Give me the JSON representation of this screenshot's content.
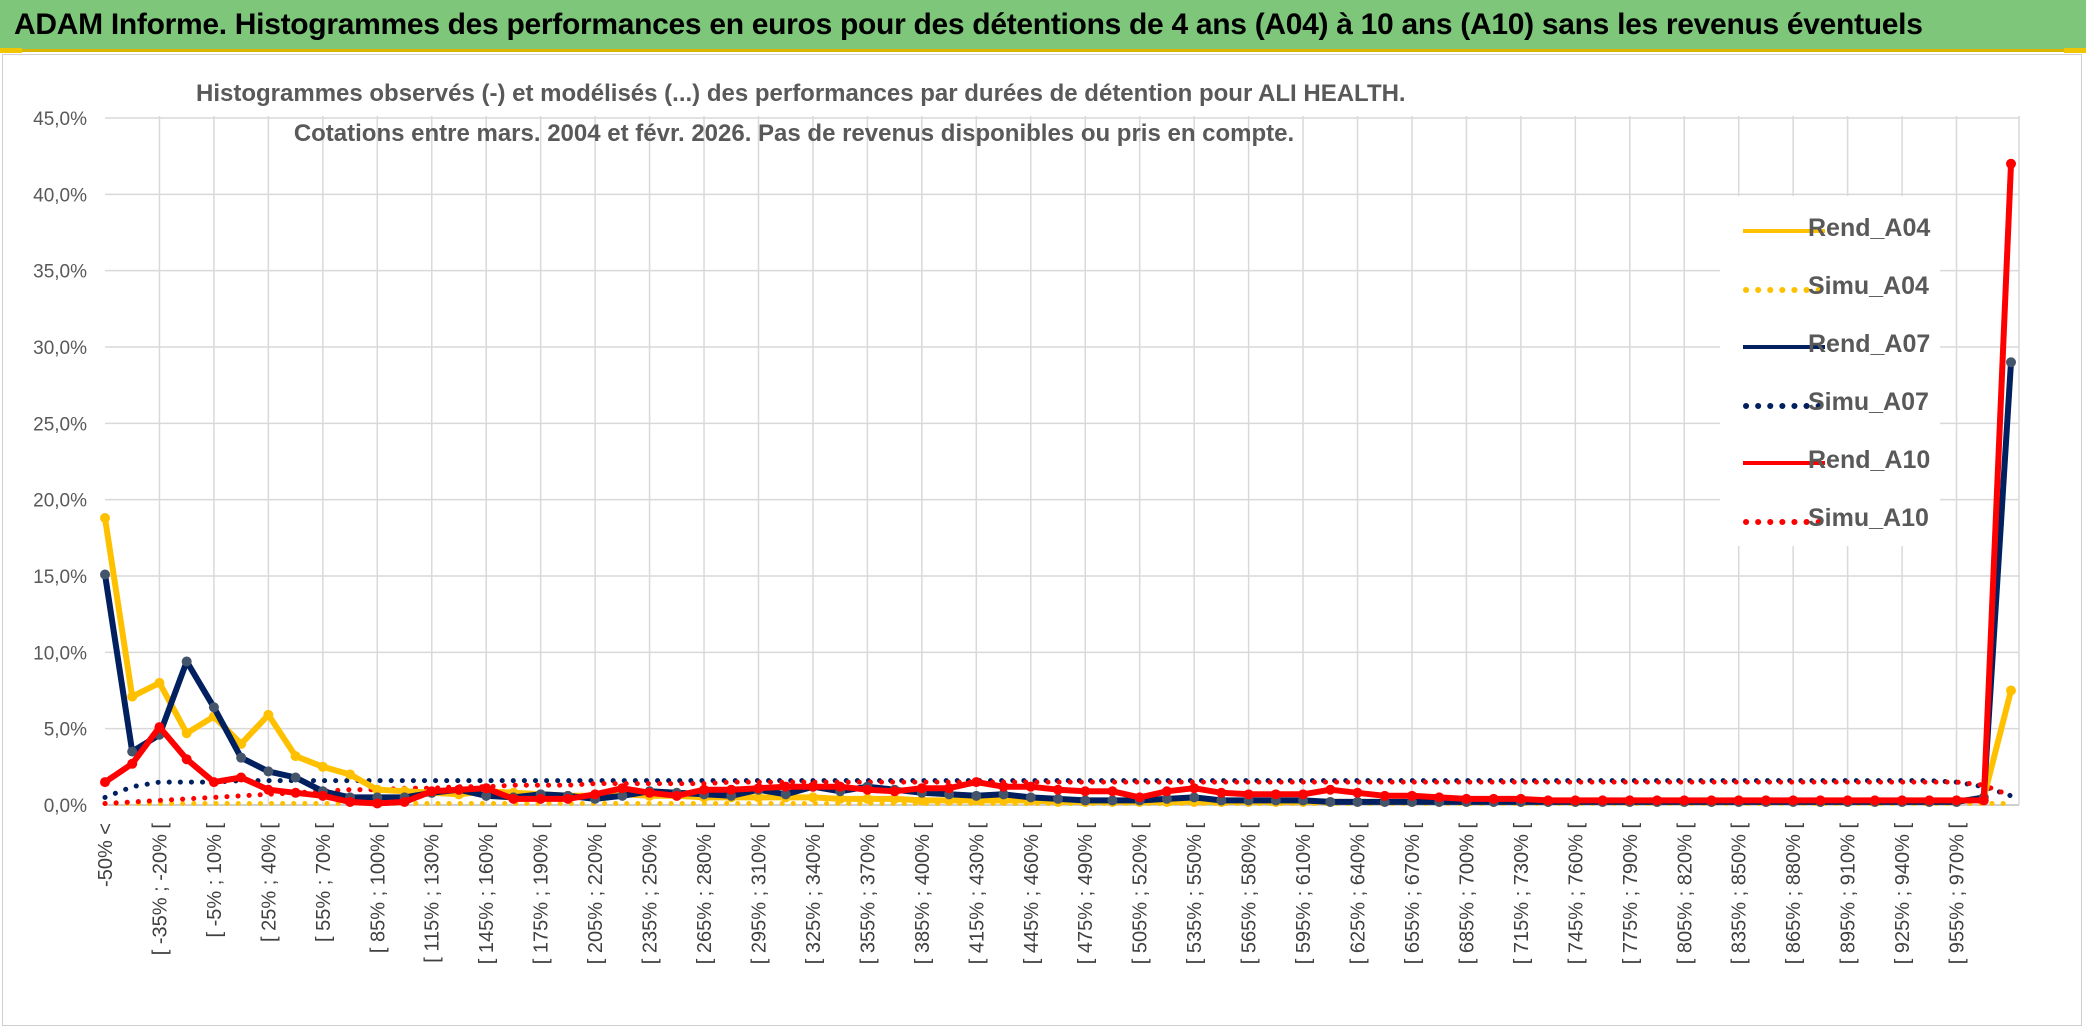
{
  "banner": {
    "title": "ADAM Informe. Histogrammes des performances en euros pour des détentions de 4 ans (A04) à 10 ans (A10) sans les revenus éventuels"
  },
  "chart_data": {
    "type": "line",
    "title": "Histogrammes observés (-) et modélisés (...) des performances par durées de détention pour ALI HEALTH.",
    "subtitle": "Cotations entre mars. 2004 et févr. 2026. Pas de revenus disponibles ou pris en compte.",
    "xlabel": "",
    "ylabel": "",
    "ylim": [
      0,
      45
    ],
    "y_ticks": [
      "0,0%",
      "5,0%",
      "10,0%",
      "15,0%",
      "20,0%",
      "25,0%",
      "30,0%",
      "35,0%",
      "40,0%",
      "45,0%"
    ],
    "x_tick_labels": [
      "-50% <",
      "[ -35% ; -20% [",
      "[ -5% ; 10% [",
      "[ 25% ; 40% [",
      "[ 55% ; 70% [",
      "[ 85% ; 100% [",
      "[ 115% ; 130% [",
      "[ 145% ; 160% [",
      "[ 175% ; 190% [",
      "[ 205% ; 220% [",
      "[ 235% ; 250% [",
      "[ 265% ; 280% [",
      "[ 295% ; 310% [",
      "[ 325% ; 340% [",
      "[ 355% ; 370% [",
      "[ 385% ; 400% [",
      "[ 415% ; 430% [",
      "[ 445% ; 460% [",
      "[ 475% ; 490% [",
      "[ 505% ; 520% [",
      "[ 535% ; 550% [",
      "[ 565% ; 580% [",
      "[ 595% ; 610% [",
      "[ 625% ; 640% [",
      "[ 655% ; 670% [",
      "[ 685% ; 700% [",
      "[ 715% ; 730% [",
      "[ 745% ; 760% [",
      "[ 775% ; 790% [",
      "[ 805% ; 820% [",
      "[ 835% ; 850% [",
      "[ 865% ; 880% [",
      "[ 895% ; 910% [",
      "[ 925% ; 940% [",
      "[ 955% ; 970% ["
    ],
    "n_categories": 71,
    "legend_position": "right",
    "grid": true,
    "series": [
      {
        "name": "Rend_A04",
        "style": "solid",
        "color": "#ffc000",
        "values": [
          18.8,
          7.1,
          8.0,
          4.7,
          5.8,
          4.0,
          5.9,
          3.2,
          2.5,
          2.0,
          1.0,
          0.9,
          0.8,
          0.7,
          0.9,
          0.8,
          0.7,
          0.6,
          0.6,
          0.7,
          0.6,
          0.6,
          0.5,
          0.5,
          0.5,
          0.5,
          0.5,
          0.4,
          0.4,
          0.4,
          0.3,
          0.3,
          0.3,
          0.3,
          0.3,
          0.2,
          0.2,
          0.2,
          0.2,
          0.2,
          0.2,
          0.2,
          0.2,
          0.2,
          0.2,
          0.2,
          0.2,
          0.2,
          0.2,
          0.2,
          0.2,
          0.2,
          0.2,
          0.2,
          0.2,
          0.2,
          0.2,
          0.2,
          0.2,
          0.2,
          0.2,
          0.2,
          0.2,
          0.2,
          0.2,
          0.2,
          0.2,
          0.2,
          0.2,
          0.5,
          7.5
        ]
      },
      {
        "name": "Simu_A04",
        "style": "dotted",
        "color": "#ffc000",
        "values": [
          0.1,
          0.1,
          0.1,
          0.1,
          0.1,
          0.1,
          0.1,
          0.1,
          0.1,
          0.1,
          0.1,
          0.1,
          0.1,
          0.1,
          0.1,
          0.1,
          0.1,
          0.1,
          0.1,
          0.1,
          0.1,
          0.1,
          0.1,
          0.1,
          0.1,
          0.1,
          0.1,
          0.1,
          0.1,
          0.1,
          0.1,
          0.1,
          0.1,
          0.1,
          0.1,
          0.1,
          0.1,
          0.1,
          0.1,
          0.1,
          0.1,
          0.1,
          0.1,
          0.1,
          0.1,
          0.1,
          0.1,
          0.1,
          0.1,
          0.1,
          0.1,
          0.1,
          0.1,
          0.1,
          0.1,
          0.1,
          0.1,
          0.1,
          0.1,
          0.1,
          0.1,
          0.1,
          0.1,
          0.1,
          0.1,
          0.1,
          0.1,
          0.1,
          0.1,
          0.1,
          0.1
        ]
      },
      {
        "name": "Rend_A07",
        "style": "solid",
        "color": "#002060",
        "values": [
          15.1,
          3.5,
          4.6,
          9.4,
          6.4,
          3.1,
          2.2,
          1.8,
          0.9,
          0.5,
          0.5,
          0.5,
          0.8,
          1.0,
          0.6,
          0.5,
          0.7,
          0.6,
          0.4,
          0.6,
          0.9,
          0.8,
          0.7,
          0.6,
          1.0,
          0.7,
          1.2,
          0.9,
          1.2,
          1.0,
          0.8,
          0.7,
          0.6,
          0.7,
          0.5,
          0.4,
          0.3,
          0.3,
          0.3,
          0.4,
          0.5,
          0.3,
          0.3,
          0.3,
          0.3,
          0.2,
          0.2,
          0.2,
          0.2,
          0.2,
          0.2,
          0.2,
          0.2,
          0.2,
          0.2,
          0.2,
          0.2,
          0.2,
          0.2,
          0.2,
          0.2,
          0.2,
          0.2,
          0.2,
          0.2,
          0.2,
          0.2,
          0.2,
          0.2,
          0.5,
          29.0
        ]
      },
      {
        "name": "Simu_A07",
        "style": "dotted",
        "color": "#002060",
        "values": [
          0.5,
          1.2,
          1.5,
          1.5,
          1.5,
          1.6,
          1.6,
          1.6,
          1.6,
          1.6,
          1.6,
          1.6,
          1.6,
          1.6,
          1.6,
          1.6,
          1.6,
          1.6,
          1.6,
          1.6,
          1.6,
          1.6,
          1.6,
          1.6,
          1.6,
          1.6,
          1.6,
          1.6,
          1.6,
          1.6,
          1.6,
          1.6,
          1.6,
          1.6,
          1.6,
          1.6,
          1.6,
          1.6,
          1.6,
          1.6,
          1.6,
          1.6,
          1.6,
          1.6,
          1.6,
          1.6,
          1.6,
          1.6,
          1.6,
          1.6,
          1.6,
          1.6,
          1.6,
          1.6,
          1.6,
          1.6,
          1.6,
          1.6,
          1.6,
          1.6,
          1.6,
          1.6,
          1.6,
          1.6,
          1.6,
          1.6,
          1.6,
          1.6,
          1.5,
          1.2,
          0.6
        ]
      },
      {
        "name": "Rend_A10",
        "style": "solid",
        "color": "#ff0000",
        "values": [
          1.5,
          2.7,
          5.1,
          3.0,
          1.5,
          1.8,
          1.0,
          0.8,
          0.6,
          0.2,
          0.1,
          0.2,
          0.9,
          1.0,
          1.1,
          0.4,
          0.4,
          0.4,
          0.7,
          1.1,
          0.8,
          0.6,
          1.0,
          1.0,
          1.1,
          1.2,
          1.2,
          1.2,
          1.0,
          0.9,
          1.1,
          1.1,
          1.5,
          1.2,
          1.2,
          1.0,
          0.9,
          0.9,
          0.5,
          0.9,
          1.1,
          0.8,
          0.7,
          0.7,
          0.7,
          1.0,
          0.8,
          0.6,
          0.6,
          0.5,
          0.4,
          0.4,
          0.4,
          0.3,
          0.3,
          0.3,
          0.3,
          0.3,
          0.3,
          0.3,
          0.3,
          0.3,
          0.3,
          0.3,
          0.3,
          0.3,
          0.3,
          0.3,
          0.3,
          0.3,
          42.0
        ]
      },
      {
        "name": "Simu_A10",
        "style": "dotted",
        "color": "#ff0000",
        "values": [
          0.1,
          0.2,
          0.3,
          0.4,
          0.5,
          0.6,
          0.7,
          0.8,
          0.9,
          1.0,
          1.0,
          1.1,
          1.1,
          1.2,
          1.2,
          1.3,
          1.3,
          1.3,
          1.4,
          1.4,
          1.4,
          1.4,
          1.4,
          1.5,
          1.5,
          1.5,
          1.5,
          1.5,
          1.5,
          1.5,
          1.5,
          1.5,
          1.5,
          1.5,
          1.5,
          1.5,
          1.5,
          1.5,
          1.5,
          1.5,
          1.5,
          1.5,
          1.5,
          1.5,
          1.5,
          1.5,
          1.5,
          1.5,
          1.5,
          1.5,
          1.5,
          1.5,
          1.5,
          1.5,
          1.5,
          1.5,
          1.5,
          1.5,
          1.5,
          1.5,
          1.5,
          1.5,
          1.5,
          1.5,
          1.5,
          1.5,
          1.5,
          1.5,
          1.5,
          1.3,
          0.6
        ]
      }
    ]
  }
}
